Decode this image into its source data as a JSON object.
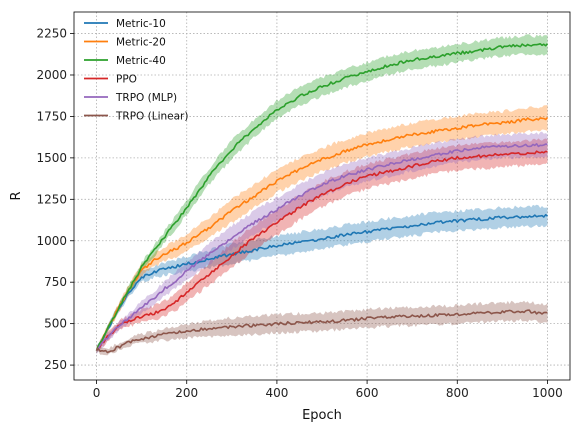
{
  "chart_data": {
    "type": "line",
    "xlabel": "Epoch",
    "ylabel": "R",
    "xlim": [
      -50,
      1050
    ],
    "ylim": [
      160,
      2380
    ],
    "xticks": [
      0,
      200,
      400,
      600,
      800,
      1000
    ],
    "yticks": [
      250,
      500,
      750,
      1000,
      1250,
      1500,
      1750,
      2000,
      2250
    ],
    "grid": true,
    "legend_position": "top-left",
    "x": [
      0,
      25,
      50,
      75,
      100,
      125,
      150,
      175,
      200,
      250,
      300,
      350,
      400,
      450,
      500,
      550,
      600,
      650,
      700,
      750,
      800,
      850,
      900,
      950,
      1000
    ],
    "series": [
      {
        "name": "Metric-10",
        "color": "#1f77b4",
        "band": 60,
        "values": [
          340,
          470,
          600,
          700,
          780,
          810,
          830,
          845,
          860,
          890,
          920,
          945,
          970,
          990,
          1010,
          1035,
          1055,
          1075,
          1090,
          1110,
          1120,
          1130,
          1140,
          1145,
          1150
        ]
      },
      {
        "name": "Metric-20",
        "color": "#ff7f0e",
        "band": 70,
        "values": [
          340,
          470,
          600,
          720,
          820,
          880,
          920,
          950,
          990,
          1080,
          1180,
          1270,
          1360,
          1430,
          1490,
          1540,
          1580,
          1610,
          1640,
          1660,
          1680,
          1700,
          1710,
          1730,
          1740
        ]
      },
      {
        "name": "Metric-40",
        "color": "#2ca02c",
        "band": 55,
        "values": [
          340,
          470,
          600,
          720,
          840,
          930,
          1020,
          1110,
          1200,
          1390,
          1550,
          1680,
          1790,
          1870,
          1930,
          1980,
          2020,
          2060,
          2090,
          2110,
          2130,
          2150,
          2170,
          2180,
          2180
        ]
      },
      {
        "name": "PPO",
        "color": "#d62728",
        "band": 75,
        "values": [
          340,
          420,
          490,
          520,
          545,
          560,
          590,
          630,
          690,
          800,
          910,
          1020,
          1110,
          1200,
          1280,
          1340,
          1390,
          1420,
          1450,
          1480,
          1500,
          1510,
          1520,
          1530,
          1540
        ]
      },
      {
        "name": "TRPO (MLP)",
        "color": "#9467bd",
        "band": 70,
        "values": [
          340,
          420,
          490,
          540,
          600,
          650,
          710,
          760,
          820,
          920,
          1020,
          1110,
          1190,
          1270,
          1340,
          1390,
          1430,
          1460,
          1490,
          1520,
          1540,
          1560,
          1570,
          1575,
          1580
        ]
      },
      {
        "name": "TRPO (Linear)",
        "color": "#8c564b",
        "band": 55,
        "values": [
          340,
          330,
          360,
          390,
          410,
          420,
          435,
          445,
          455,
          470,
          480,
          490,
          500,
          505,
          510,
          520,
          530,
          540,
          545,
          550,
          555,
          565,
          570,
          575,
          560
        ]
      }
    ]
  }
}
